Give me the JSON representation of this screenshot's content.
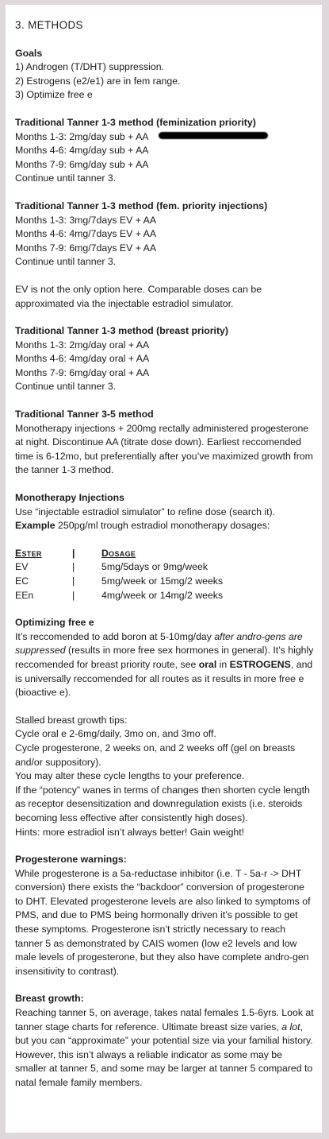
{
  "title": "3. METHODS",
  "goals": {
    "heading": "Goals",
    "items": [
      "1) Androgen (T/DHT) suppression.",
      "2) Estrogens (e2/e1) are in fem range.",
      "3) Optimize free e"
    ]
  },
  "tanner_fem": {
    "heading": "Traditional Tanner 1-3 method (feminization priority)",
    "lines": [
      "Months 1-3: 2mg/day sub + AA",
      "Months 4-6: 4mg/day sub + AA",
      "Months 7-9: 6mg/day sub + AA",
      "Continue until tanner 3."
    ]
  },
  "tanner_inj": {
    "heading": "Traditional Tanner 1-3 method (fem. priority injections)",
    "lines": [
      "Months 1-3: 3mg/7days EV + AA",
      "Months 4-6: 4mg/7days EV + AA",
      "Months 7-9: 6mg/7days EV + AA",
      "Continue until tanner 3."
    ],
    "note": "EV is not the only option here. Comparable doses can be approximated via the injectable estradiol simulator."
  },
  "tanner_breast": {
    "heading": "Traditional Tanner 1-3 method (breast priority)",
    "lines": [
      "Months 1-3: 2mg/day oral + AA",
      "Months 4-6: 4mg/day oral + AA",
      "Months 7-9: 6mg/day oral + AA",
      "Continue until tanner 3."
    ]
  },
  "tanner_35": {
    "heading": "Traditional Tanner 3-5 method",
    "body": "Monotherapy injections + 200mg rectally administered progesterone at night. Discontinue AA (titrate dose down). Earliest reccomended time is 6-12mo, but preferentially after you’ve maximized growth from the tanner 1-3 method."
  },
  "mono": {
    "heading": "Monotherapy Injections",
    "line1": "Use “injectable estradiol simulator” to refine dose (search it).",
    "example_label": "Example",
    "example_text": " 250pg/ml trough estradiol monotherapy dosages:",
    "table": {
      "headers": [
        "Ester",
        "|",
        "Dosage"
      ],
      "rows": [
        [
          "EV",
          "|",
          "5mg/5days or 9mg/week"
        ],
        [
          "EC",
          "|",
          "5mg/week  or 15mg/2 weeks"
        ],
        [
          "EEn",
          "|",
          "4mg/week  or 14mg/2 weeks"
        ]
      ]
    }
  },
  "free_e": {
    "heading": "Optimizing free e",
    "p1": "It’s reccomended to add boron at 5-10mg/day ",
    "p1_italic": "after andro-gens are suppressed",
    "p2": " (results in more free sex hormones in general). It’s highly reccomended for breast priority route, see ",
    "oral": "oral",
    "in_word": " in ",
    "estrogens": "ESTROGENS",
    "p3": ", and is universally reccomended for all routes as it results in more free e (bioactive e)."
  },
  "stalled": {
    "heading": "Stalled breast growth tips:",
    "lines": [
      "Cycle oral e 2-6mg/daily, 3mo on, and 3mo off.",
      "Cycle progesterone, 2 weeks on, and 2 weeks off (gel on breasts and/or suppository).",
      "You may alter these cycle lengths to your preference.",
      "If the “potency” wanes in terms of changes then shorten cycle length as receptor desensitization and downregulation exists (i.e. steroids becoming less effective after consistently high doses).",
      "Hints: more estradiol isn’t always better! Gain weight!"
    ]
  },
  "prog": {
    "heading": "Progesterone warnings:",
    "body": "While progesterone is a 5a-reductase inhibitor (i.e. T - 5a-r -> DHT conversion) there exists the “backdoor” conversion of progesterone to DHT. Elevated progesterone levels are also linked to symptoms of PMS, and due to PMS being hormonally driven it’s possible to get these symptoms. Progesterone isn’t strictly necessary to reach tanner 5 as demonstrated by CAIS women (low e2 levels and low male levels of progesterone, but they also have complete andro-gen insensitivity to contrast)."
  },
  "breast": {
    "heading": "Breast growth:",
    "b1": "Reaching tanner 5, on average, takes natal females 1.5-6yrs. Look at tanner stage charts for reference. Ultimate breast size varies, ",
    "b1_italic": "a lot",
    "b2": ", but you can “approximate” your potential size via your familial history. However, this isn’t always a reliable indicator as some may be smaller at tanner 5, and some may be larger at tanner 5 compared to natal female family members."
  }
}
